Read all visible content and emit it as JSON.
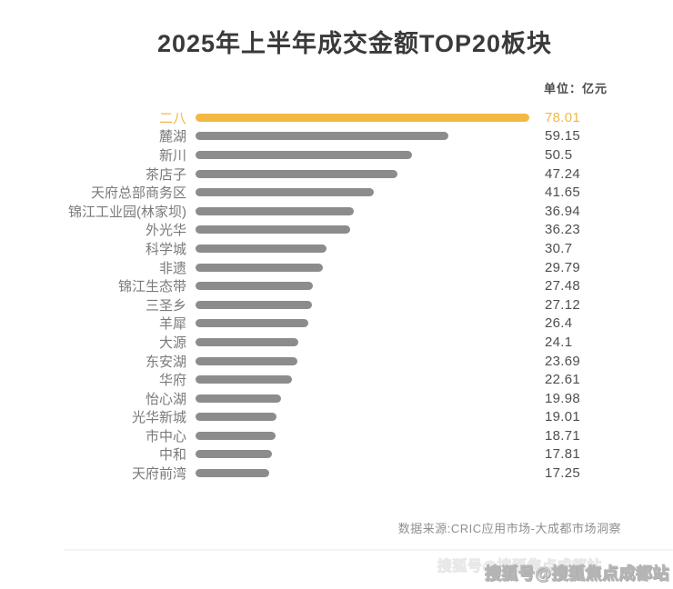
{
  "title": "2025年上半年成交金额TOP20板块",
  "unit_label": "单位：亿元",
  "source_note": "数据来源:CRIC应用市场-大成都市场洞察",
  "watermark": "搜狐号@搜狐焦点成都站",
  "colors": {
    "highlight": "#f2b844",
    "bar": "#8c8c8c",
    "label_text": "#7a7a7a",
    "value_text": "#4f4f4f",
    "title_text": "#3a3a3a"
  },
  "chart_data": {
    "type": "bar",
    "orientation": "horizontal",
    "title": "2025年上半年成交金额TOP20板块",
    "unit": "亿元",
    "xlabel": "",
    "ylabel": "",
    "xlim": [
      0,
      78.01
    ],
    "grid": false,
    "legend": false,
    "highlight_index": 0,
    "categories": [
      "二八",
      "麓湖",
      "新川",
      "茶店子",
      "天府总部商务区",
      "锦江工业园(林家坝)",
      "外光华",
      "科学城",
      "非遗",
      "锦江生态带",
      "三圣乡",
      "羊犀",
      "大源",
      "东安湖",
      "华府",
      "怡心湖",
      "光华新城",
      "市中心",
      "中和",
      "天府前湾"
    ],
    "values": [
      78.01,
      59.15,
      50.5,
      47.24,
      41.65,
      36.94,
      36.23,
      30.7,
      29.79,
      27.48,
      27.12,
      26.4,
      24.1,
      23.69,
      22.61,
      19.98,
      19.01,
      18.71,
      17.81,
      17.25
    ]
  }
}
